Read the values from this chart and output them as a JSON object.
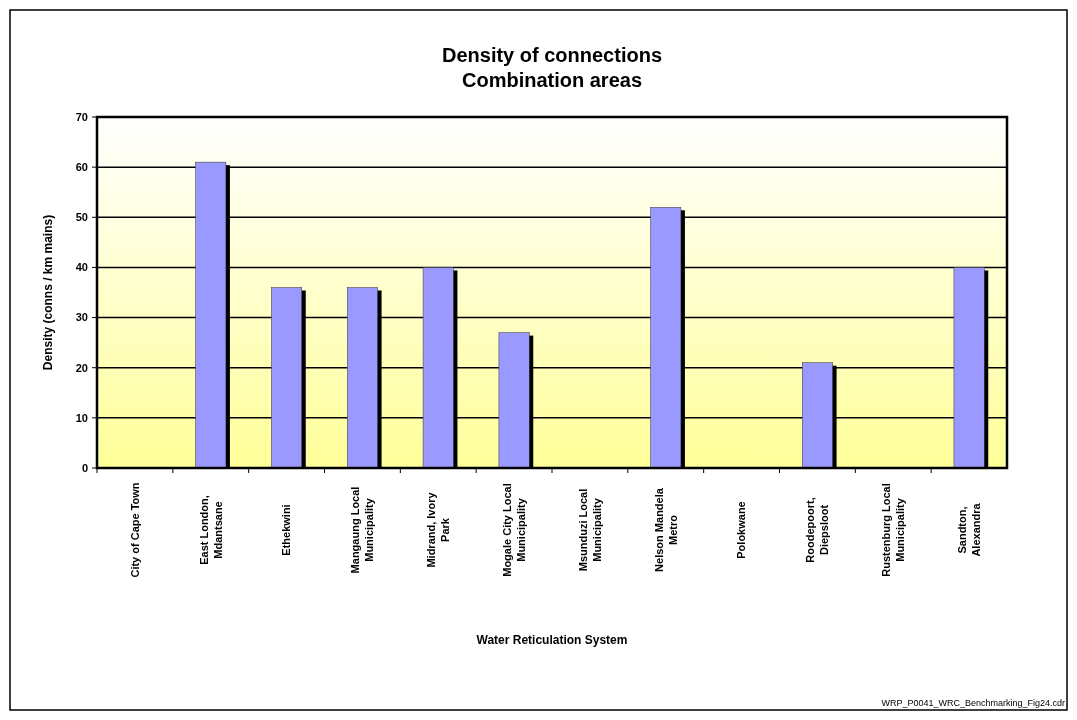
{
  "chart_data": {
    "type": "bar",
    "title": "Density of connections",
    "subtitle": "Combination areas",
    "xlabel": "Water Reticulation System",
    "ylabel": "Density (conns / km mains)",
    "categories": [
      "City of Cape Town",
      "East London, Mdantsane",
      "Ethekwini",
      "Mangaung Local Municipality",
      "Midrand, Ivory Park",
      "Mogale City Local Municipality",
      "Msunduzi Local Municipality",
      "Nelson Mandela Metro",
      "Polokwane",
      "Roodepoort, Diepsloot",
      "Rustenburg Local Municipality",
      "Sandton, Alexandra"
    ],
    "values": [
      null,
      61,
      36,
      36,
      40,
      27,
      null,
      52,
      null,
      21,
      null,
      40
    ],
    "color": "#9999ff",
    "ylim": [
      0,
      70
    ],
    "yticks": [
      0,
      10,
      20,
      30,
      40,
      50,
      60,
      70
    ],
    "grid": "y",
    "annotations": [
      "WRP_P0041_WRC_Benchmarking_Fig24.cdr"
    ]
  }
}
